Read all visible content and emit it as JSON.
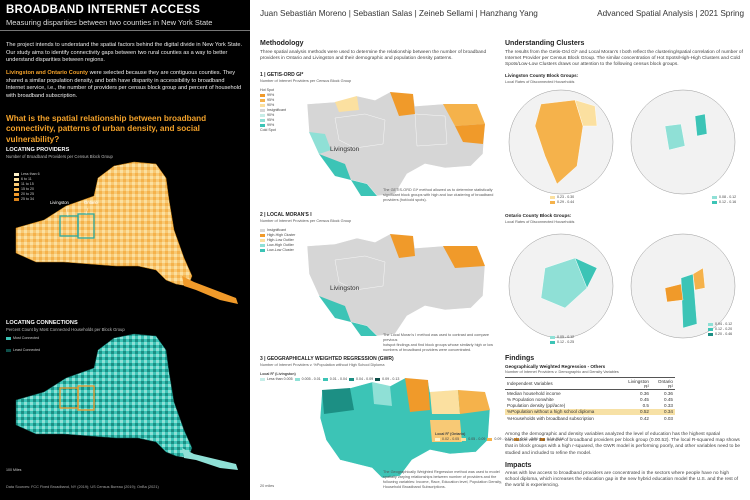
{
  "header": {
    "title": "BROADBAND INTERNET ACCESS",
    "subtitle": "Measuring disparities between two counties in New York State",
    "authors": "Juan Sebastián Moreno | Sebastian Salas | Zeineb Sellami | Hanzhang Yang",
    "course": "Advanced Spatial Analysis | 2021 Spring"
  },
  "intro": {
    "p1": "The project intends to understand the spatial factors behind the digital divide in New York State. Our study aims to identify connectivity gaps between two rural counties as a way to better understand disparities between regions.",
    "p2_bold": "Livingston and Ontario County",
    "p2_rest": " were selected because they are contiguous counties. They shared a similar population density, and both have disparity in accessibility to broadband Internet service, i.e., the number of providers per census block group and percent of household with broadband subscription.",
    "question": "What is the spatial relationship between broadband connectivity, patterns of urban density, and social vulnerability?"
  },
  "locating_providers": {
    "title": "LOCATING PROVIDERS",
    "subtitle": "Number of Broadband Providers per Census Block Group",
    "legend": [
      "Less than 6",
      "6 to 11",
      "11 to 15",
      "15 to 20",
      "20 to 25",
      "25 to 34"
    ],
    "colors": [
      "#fdf1c9",
      "#fbe0a0",
      "#f8c975",
      "#f5b24b",
      "#f09a2a",
      "#d9821a"
    ],
    "label_livingston": "Livingston",
    "label_ontario": "Ontario"
  },
  "locating_connections": {
    "title": "LOCATING CONNECTIONS",
    "subtitle": "Percent Count by Most Connected Households per Block Group",
    "legend_most": "Most Connected",
    "legend_least": "Least Connected"
  },
  "footer": {
    "scale": "100 Miles",
    "sources": "Data Sources: FCC Fixed Broadband, NY (2019); US Census Bureau (2019); OnBa (2021)"
  },
  "methodology": {
    "title": "Methodology",
    "text": "Three spatial analysis methods were used to determine the relationship between the number of broadband providers in Ontario and Livingston and their demographic and population density patterns."
  },
  "getis": {
    "title": "1 | GETIS-ORD GI*",
    "subtitle": "Number of Internet Providers per Census Block Group",
    "legend": [
      "Hot Spot",
      "99%",
      "95%",
      "90%",
      "Insignificant",
      "90%",
      "95%",
      "99%",
      "Cold Spot"
    ],
    "caption_a": "The GETIS-ORD GI* method allowed us to determine statistically",
    "caption_b": "significant block groups with high and low clustering of broadband",
    "caption_c": "providers (hot/cold spots).",
    "map_label": "Livingston"
  },
  "moran": {
    "title": "2 | LOCAL MORAN'S I",
    "subtitle": "Number of Internet Providers per Census Block Group",
    "legend": [
      "Insignificant",
      "High-High Cluster",
      "High-Low Outlier",
      "Low-High Outlier",
      "Low-Low Cluster"
    ],
    "caption_a": "The Local Moran's I method was used to contrast and compare previous",
    "caption_b": "hotspot findings and find block groups whose similarly high or low",
    "caption_c": "numbers of broadband providers were concentrated.",
    "map_label": "Livingston"
  },
  "gwr": {
    "title": "3 | GEOGRAPHICALLY WEIGHTED REGRESSION (GWR)",
    "subtitle": "Number of Internet Providers v. %Population without High School Diploma",
    "legend_left_title": "Local R² (Livingston)",
    "legend_left": [
      "Less than 0.005",
      "0.005 - 0.01",
      "0.01 - 0.04",
      "0.04 - 0.09",
      "0.09 - 0.13"
    ],
    "legend_right_title": "Local R² (Ontario)",
    "legend_right": [
      "0.02 - 0.05",
      "0.05 - 0.09",
      "0.09 - 0.12",
      "0.12 - 0.14",
      "0.14 - 0.16"
    ],
    "caption_a": "The Geographically Weighted Regression method was used to model",
    "caption_b": "spatially varying relationships between number of providers and the",
    "caption_c": "following variables: Income, Race, Education level, Population Density,",
    "caption_d": "Household Broadband Subscriptions.",
    "scale": "20 miles"
  },
  "clusters": {
    "title": "Understanding Clusters",
    "text": "The results from the Getis-Ord Gi* and Local Moran's I both reflect the clustering/spatial correlation of number of Internet Provider per Census Block Group. The similar concentration of Hot Spots/High-High Clusters and Cold Spots/Low-Low Clusters draws our attention to the following census block groups.",
    "livingston_title": "Livingston County Block Groups:",
    "livingston_sub": "Local Rates of Disconnected Households",
    "livingston_legend_a": [
      "0.23 - 0.30",
      "0.29 - 0.44"
    ],
    "livingston_legend_b": [
      "0.08 - 0.12",
      "0.12 - 0.16"
    ],
    "ontario_title": "Ontario County Block Groups:",
    "ontario_sub": "Local Rates of Disconnected Households",
    "ontario_legend_a": [
      "0.05 - 0.12",
      "0.12 - 0.25"
    ],
    "ontario_legend_b": [
      "0.04 - 0.12",
      "0.12 - 0.20",
      "0.20 - 0.46"
    ]
  },
  "findings": {
    "title": "Findings",
    "table_title": "Geographically Weighted Regression - Others",
    "table_subtitle": "Number of Internet Providers v. Demographic and Density Variables",
    "col_var": "Independent Variables",
    "col_liv": "Livingston",
    "col_ont": "Ontario",
    "r2_label": "R²",
    "rows": [
      {
        "var": "Median household income",
        "liv": "0.36",
        "ont": "0.36"
      },
      {
        "var": "% Population nonwhite",
        "liv": "0.45",
        "ont": "0.45"
      },
      {
        "var": "Population density (ppl/acre)",
        "liv": "0.5",
        "ont": "0.33"
      },
      {
        "var": "%Population without a high school diploma",
        "liv": "0.52",
        "ont": "0.34"
      },
      {
        "var": "%Households with broadband subscription",
        "liv": "0.42",
        "ont": "0.03"
      }
    ],
    "text": "Among the demographic and density variables analyzed the level of education has the highest spatial correlation with the number of broadband providers per block group (0.00.52). The local R-squared map shows that in block groups with a high r-squared, the GWR model is performing poorly, and other variables need to be studied and included to refine the model."
  },
  "impacts": {
    "title": "Impacts",
    "text": "Areas with low access to broadband providers are concentrated in the sectors where people have no high school diploma, which increases the education gap in the new hybrid education model the U.S. and the rest of the world is experiencing."
  }
}
